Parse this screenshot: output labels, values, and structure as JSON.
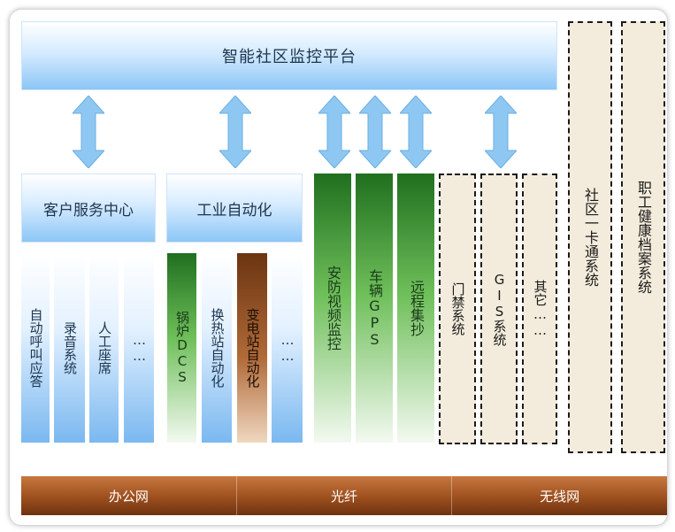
{
  "platform_title": "智能社区监控平台",
  "centers": {
    "customer_service": "客户服务中心",
    "industrial_automation": "工业自动化"
  },
  "customer_items": [
    "自动呼叫应答",
    "录音系统",
    "人工座席",
    "……"
  ],
  "industrial_items": [
    "锅炉DCS",
    "换热站自动化",
    "变电站自动化",
    "……"
  ],
  "green_columns": [
    "安防视频监控",
    "车辆GPS",
    "远程集抄"
  ],
  "dashed_columns": [
    "门禁系统",
    "GIS系统",
    "其它……"
  ],
  "side_columns": [
    "社区一卡通系统",
    "职工健康档案系统"
  ],
  "networks": [
    "办公网",
    "光纤",
    "无线网"
  ],
  "colors": {
    "blue": "#8cc6f6",
    "green": "#2e8b2e",
    "brown": "#9d4f1e",
    "beige": "#f3ecdc",
    "arrow": "#8ec8f2"
  }
}
